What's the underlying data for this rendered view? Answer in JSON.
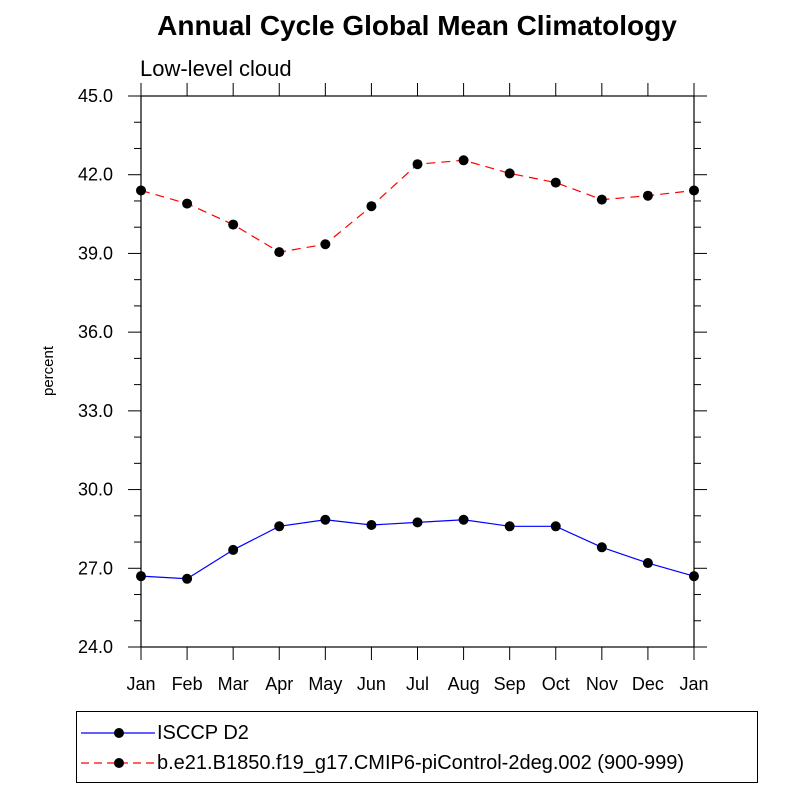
{
  "chart_data": {
    "type": "line",
    "title": "Annual Cycle Global Mean Climatology",
    "subtitle": "Low-level cloud",
    "xlabel": "",
    "ylabel": "percent",
    "categories": [
      "Jan",
      "Feb",
      "Mar",
      "Apr",
      "May",
      "Jun",
      "Jul",
      "Aug",
      "Sep",
      "Oct",
      "Nov",
      "Dec",
      "Jan"
    ],
    "ylim": [
      24.0,
      45.0
    ],
    "yticks": [
      "24.0",
      "27.0",
      "30.0",
      "33.0",
      "36.0",
      "39.0",
      "42.0",
      "45.0"
    ],
    "grid": false,
    "legend_position": "bottom",
    "series": [
      {
        "name": "ISCCP D2",
        "color": "#0000ff",
        "dash": "solid",
        "marker": "filled-circle",
        "values": [
          26.7,
          26.6,
          27.7,
          28.6,
          28.85,
          28.65,
          28.75,
          28.85,
          28.6,
          28.6,
          27.8,
          27.2,
          26.7
        ]
      },
      {
        "name": "b.e21.B1850.f19_g17.CMIP6-piControl-2deg.002 (900-999)",
        "color": "#ff0000",
        "dash": "dashed",
        "marker": "filled-circle",
        "values": [
          41.4,
          40.9,
          40.1,
          39.05,
          39.35,
          40.8,
          42.4,
          42.55,
          42.05,
          41.7,
          41.05,
          41.2,
          41.4
        ]
      }
    ]
  }
}
